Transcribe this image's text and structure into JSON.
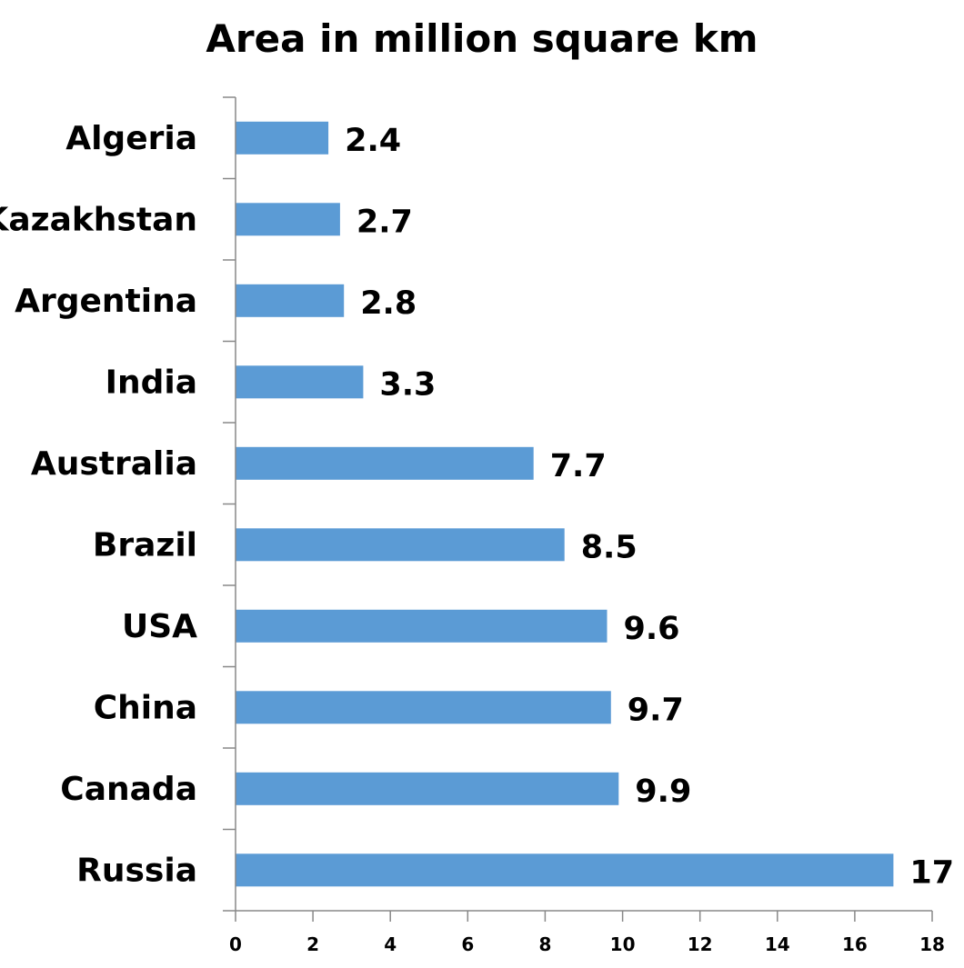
{
  "chart_data": {
    "type": "bar",
    "orientation": "horizontal",
    "title": "Area in million square km",
    "xlabel": "",
    "ylabel": "",
    "categories": [
      "Algeria",
      "Kazakhstan",
      "Argentina",
      "India",
      "Australia",
      "Brazil",
      "USA",
      "China",
      "Canada",
      "Russia"
    ],
    "values": [
      2.4,
      2.7,
      2.8,
      3.3,
      7.7,
      8.5,
      9.6,
      9.7,
      9.9,
      17
    ],
    "data_labels": [
      "2.4",
      "2.7",
      "2.8",
      "3.3",
      "7.7",
      "8.5",
      "9.6",
      "9.7",
      "9.9",
      "17"
    ],
    "xlim": [
      0,
      18
    ],
    "x_ticks": [
      "0",
      "2",
      "4",
      "6",
      "8",
      "10",
      "12",
      "14",
      "16",
      "18"
    ],
    "grid": false,
    "legend": "none",
    "bar_color": "#5b9bd5",
    "axis_color": "#888888"
  }
}
